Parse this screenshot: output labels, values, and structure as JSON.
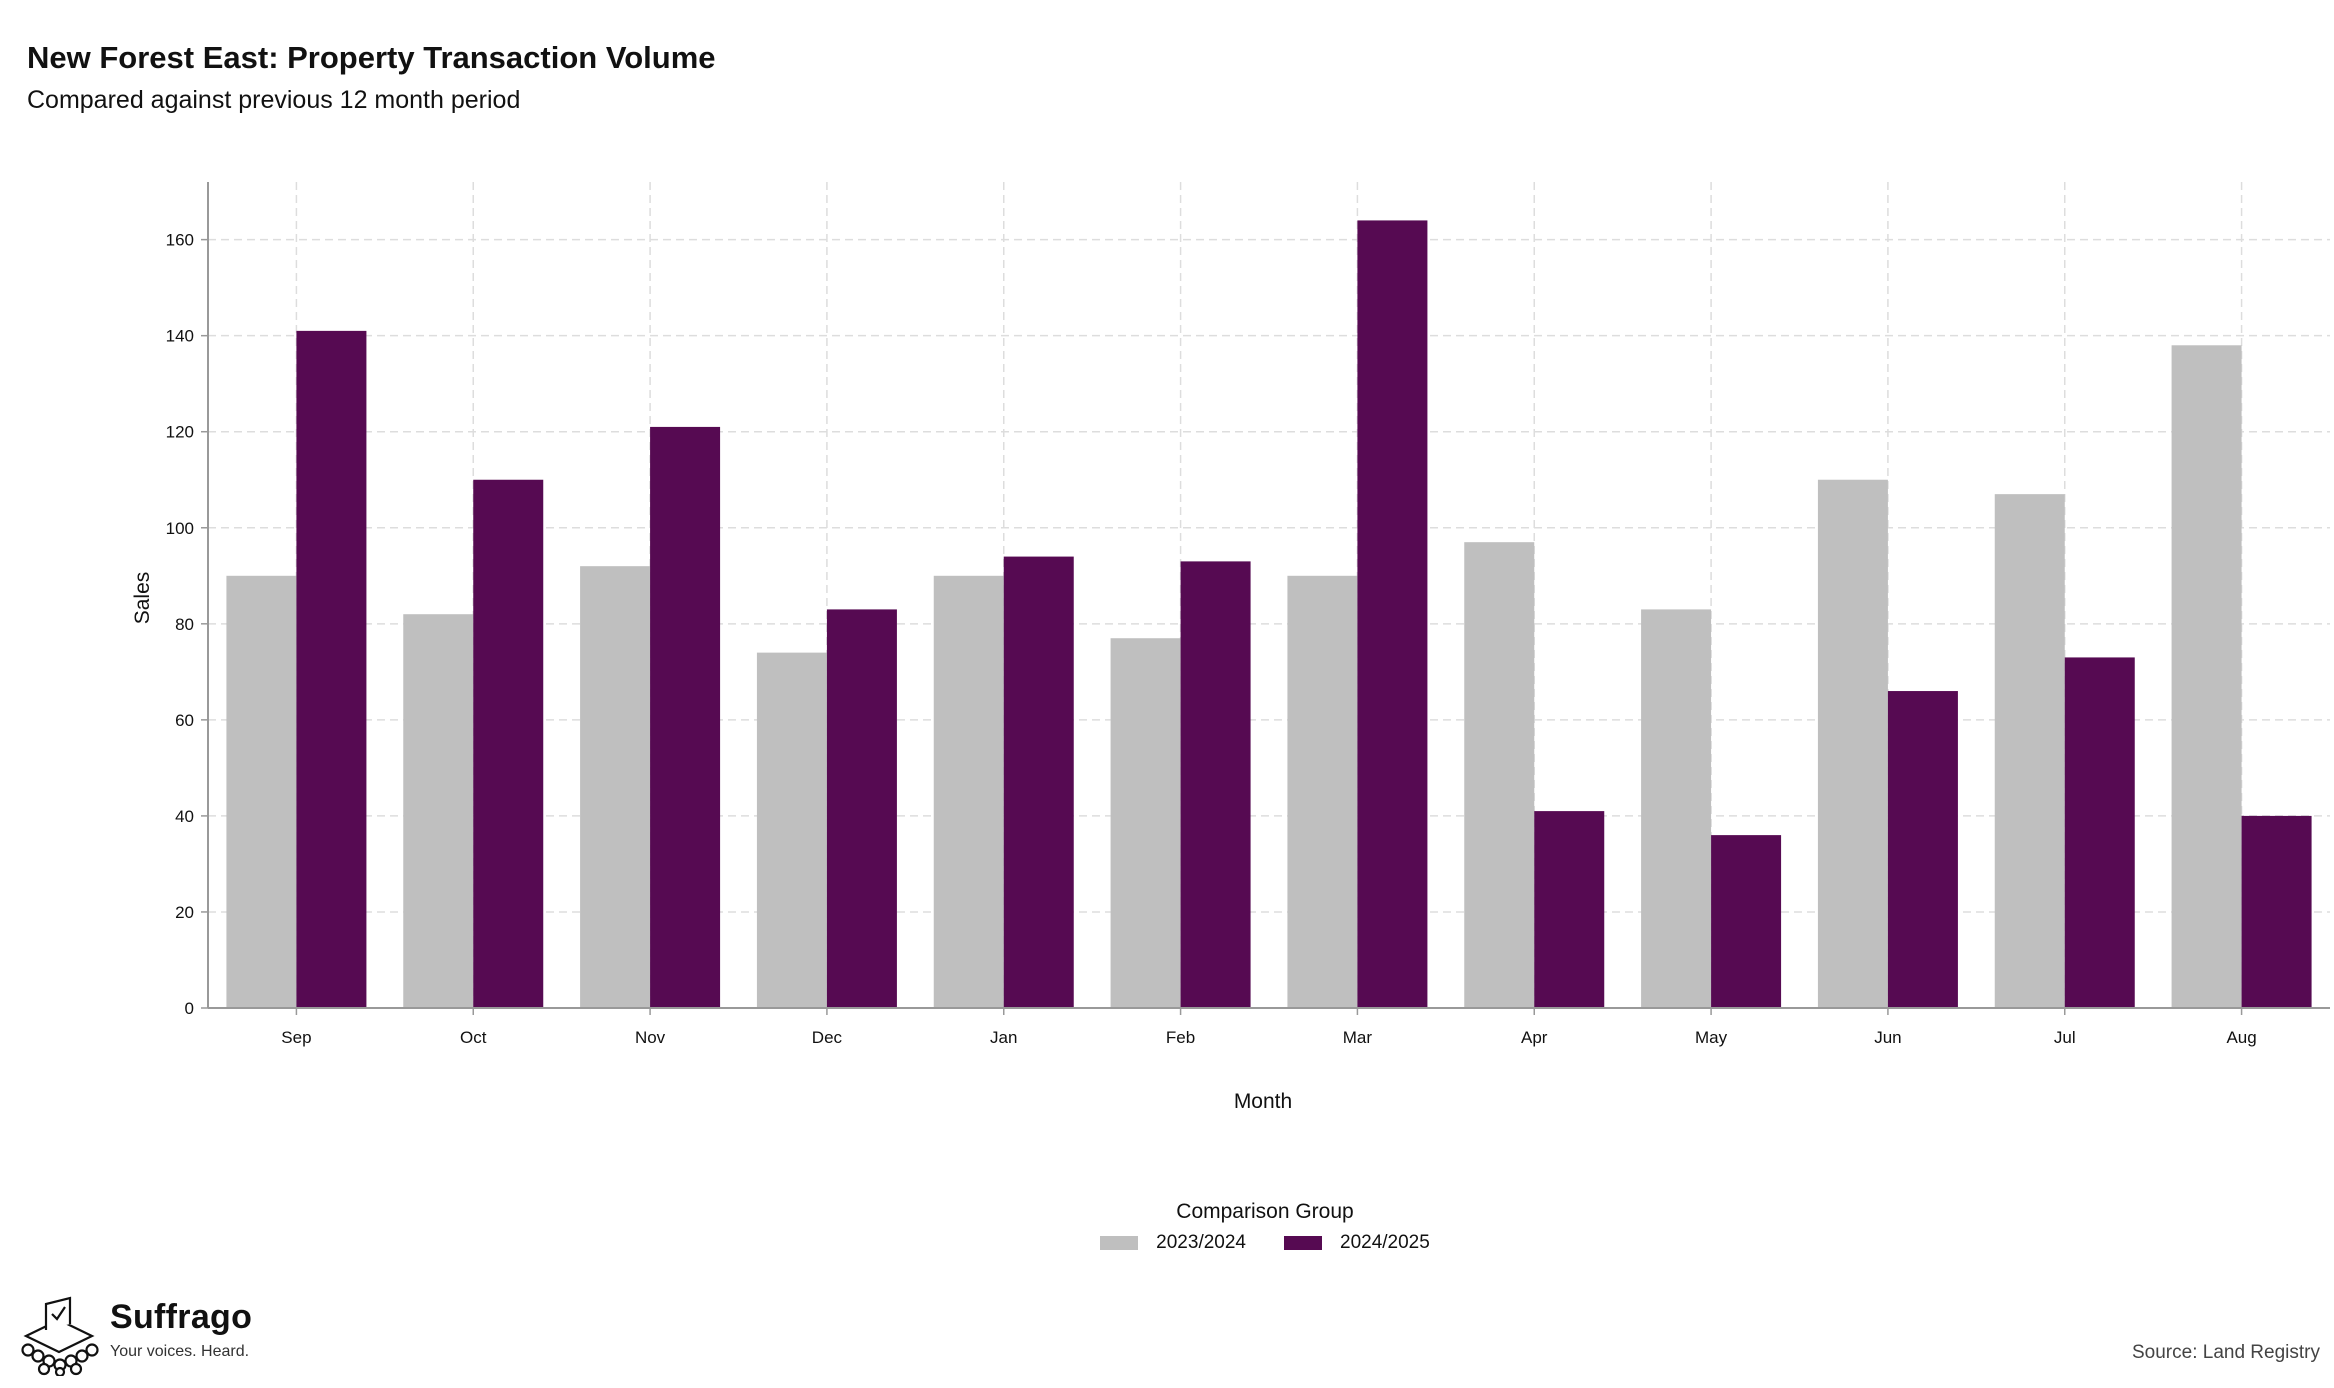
{
  "title": "New Forest East: Property Transaction Volume",
  "subtitle": "Compared against previous 12 month period",
  "source": "Source: Land Registry",
  "brand": {
    "name": "Suffrago",
    "tagline": "Your voices. Heard.",
    "icon": "ballot-box-logo-icon"
  },
  "colors": {
    "series_2023_2024": "#bfbfbf",
    "series_2024_2025": "#560a52",
    "grid": "#dddddd",
    "axis": "#999999"
  },
  "chart_data": {
    "type": "bar",
    "xlabel": "Month",
    "ylabel": "Sales",
    "categories": [
      "Sep",
      "Oct",
      "Nov",
      "Dec",
      "Jan",
      "Feb",
      "Mar",
      "Apr",
      "May",
      "Jun",
      "Jul",
      "Aug"
    ],
    "series": [
      {
        "name": "2023/2024",
        "values": [
          90,
          82,
          92,
          74,
          90,
          77,
          90,
          97,
          83,
          110,
          107,
          138
        ]
      },
      {
        "name": "2024/2025",
        "values": [
          141,
          110,
          121,
          83,
          94,
          93,
          164,
          41,
          36,
          66,
          73,
          40
        ]
      }
    ],
    "ylim": [
      0,
      172
    ],
    "yticks": [
      0,
      20,
      40,
      60,
      80,
      100,
      120,
      140,
      160
    ],
    "grid": true,
    "legend": {
      "title": "Comparison Group",
      "placement": "bottom"
    }
  }
}
